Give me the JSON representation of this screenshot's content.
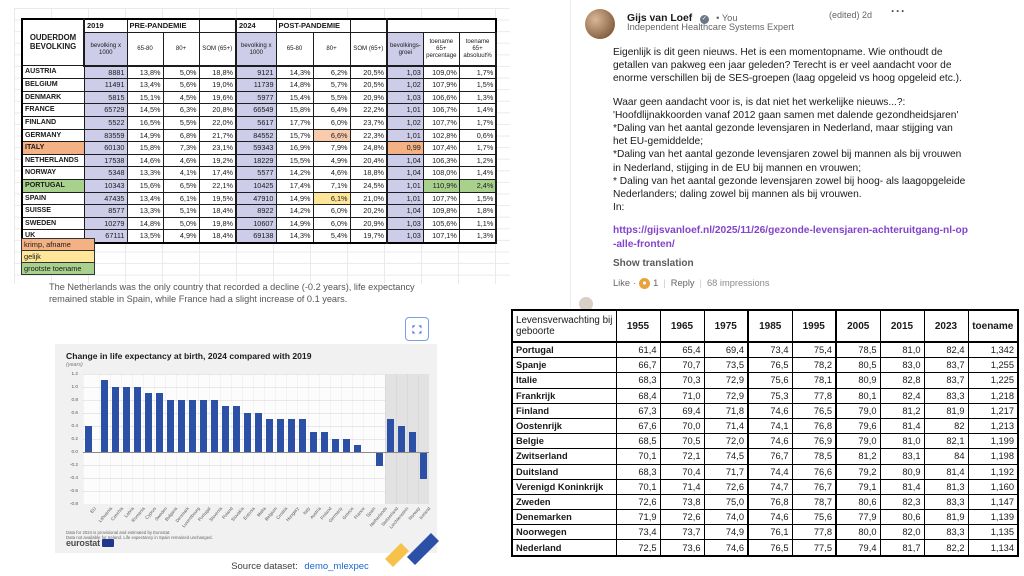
{
  "colors": {
    "lavender": "#cdcde9",
    "highlight_orange": "#f4b183",
    "highlight_salmon": "#f8cbad",
    "highlight_yellow": "#ffe699",
    "highlight_green": "#a9d18e",
    "bar_blue": "#2b50a5",
    "source_link_blue": "#1967d2",
    "post_link_purple": "#8344cc"
  },
  "pop_table": {
    "corner": "OUDERDOM\nBEVOLKING",
    "groups": [
      {
        "year": "2019",
        "label": "PRE-PANDEMIE"
      },
      {
        "year": "2024",
        "label": "POST-PANDEMIE"
      }
    ],
    "sub_headers": [
      "bevolking x 1000",
      "65-80",
      "80+",
      "SOM (65+)"
    ],
    "extra_headers": [
      "bevolkings-groei",
      "toename 65+ percentage",
      "toename 65+ absoluut%"
    ],
    "rows": [
      {
        "c": "AUSTRIA",
        "a": [
          "8881",
          "13,8%",
          "5,0%",
          "18,8%"
        ],
        "b": [
          "9121",
          "14,3%",
          "6,2%",
          "20,5%"
        ],
        "g": "1,03",
        "p": "109,0%",
        "x": "1,7%"
      },
      {
        "c": "BELGIUM",
        "a": [
          "11491",
          "13,4%",
          "5,6%",
          "19,0%"
        ],
        "b": [
          "11739",
          "14,8%",
          "5,7%",
          "20,5%"
        ],
        "g": "1,02",
        "p": "107,9%",
        "x": "1,5%"
      },
      {
        "c": "DENMARK",
        "a": [
          "5815",
          "15,1%",
          "4,5%",
          "19,6%"
        ],
        "b": [
          "5977",
          "15,4%",
          "5,5%",
          "20,9%"
        ],
        "g": "1,03",
        "p": "106,6%",
        "x": "1,3%"
      },
      {
        "c": "FRANCE",
        "a": [
          "65729",
          "14,5%",
          "6,3%",
          "20,8%"
        ],
        "b": [
          "66549",
          "15,8%",
          "6,4%",
          "22,2%"
        ],
        "g": "1,01",
        "p": "106,7%",
        "x": "1,4%"
      },
      {
        "c": "FINLAND",
        "a": [
          "5522",
          "16,5%",
          "5,5%",
          "22,0%"
        ],
        "b": [
          "5617",
          "17,7%",
          "6,0%",
          "23,7%"
        ],
        "g": "1,02",
        "p": "107,7%",
        "x": "1,7%"
      },
      {
        "c": "GERMANY",
        "a": [
          "83559",
          "14,9%",
          "6,8%",
          "21,7%"
        ],
        "b": [
          "84552",
          "15,7%",
          "6,6%",
          "22,3%"
        ],
        "g": "1,01",
        "p": "102,8%",
        "x": "0,6%",
        "hl": {
          "b2": "salmon"
        }
      },
      {
        "c": "ITALY",
        "a": [
          "60130",
          "15,8%",
          "7,3%",
          "23,1%"
        ],
        "b": [
          "59343",
          "16,9%",
          "7,9%",
          "24,8%"
        ],
        "g": "0,99",
        "p": "107,4%",
        "x": "1,7%",
        "hl": {
          "c": "orange",
          "g": "orange"
        }
      },
      {
        "c": "NETHERLANDS",
        "a": [
          "17538",
          "14,6%",
          "4,6%",
          "19,2%"
        ],
        "b": [
          "18229",
          "15,5%",
          "4,9%",
          "20,4%"
        ],
        "g": "1,04",
        "p": "106,3%",
        "x": "1,2%"
      },
      {
        "c": "NORWAY",
        "a": [
          "5348",
          "13,3%",
          "4,1%",
          "17,4%"
        ],
        "b": [
          "5577",
          "14,2%",
          "4,6%",
          "18,8%"
        ],
        "g": "1,04",
        "p": "108,0%",
        "x": "1,4%"
      },
      {
        "c": "PORTUGAL",
        "a": [
          "10343",
          "15,6%",
          "6,5%",
          "22,1%"
        ],
        "b": [
          "10425",
          "17,4%",
          "7,1%",
          "24,5%"
        ],
        "g": "1,01",
        "p": "110,9%",
        "x": "2,4%",
        "hl": {
          "c": "green",
          "p": "green",
          "x": "green"
        }
      },
      {
        "c": "SPAIN",
        "a": [
          "47435",
          "13,4%",
          "6,1%",
          "19,5%"
        ],
        "b": [
          "47910",
          "14,9%",
          "6,1%",
          "21,0%"
        ],
        "g": "1,01",
        "p": "107,7%",
        "x": "1,5%",
        "hl": {
          "b2": "yellow"
        }
      },
      {
        "c": "SUISSE",
        "a": [
          "8577",
          "13,3%",
          "5,1%",
          "18,4%"
        ],
        "b": [
          "8922",
          "14,2%",
          "6,0%",
          "20,2%"
        ],
        "g": "1,04",
        "p": "109,8%",
        "x": "1,8%"
      },
      {
        "c": "SWEDEN",
        "a": [
          "10279",
          "14,8%",
          "5,0%",
          "19,8%"
        ],
        "b": [
          "10607",
          "14,9%",
          "6,0%",
          "20,9%"
        ],
        "g": "1,03",
        "p": "105,6%",
        "x": "1,1%"
      },
      {
        "c": "UK",
        "a": [
          "67111",
          "13,5%",
          "4,9%",
          "18,4%"
        ],
        "b": [
          "69138",
          "14,3%",
          "5,4%",
          "19,7%"
        ],
        "g": "1,03",
        "p": "107,1%",
        "x": "1,3%"
      }
    ],
    "legend": [
      {
        "label": "krimp, afname",
        "color": "#f4b183"
      },
      {
        "label": "gelijk",
        "color": "#ffe699"
      },
      {
        "label": "grootste toename",
        "color": "#a9d18e"
      }
    ]
  },
  "note": "The Netherlands was the only country that recorded a decline (-0.2 years), life expectancy remained stable in Spain, while France had a slight increase of 0.1 years.",
  "chart_data": {
    "type": "bar",
    "title": "Change in life expectancy at birth, 2024 compared with 2019",
    "subtitle": "(years)",
    "ylabel": "years",
    "ylim": [
      -0.8,
      1.2
    ],
    "yticks": [
      1.2,
      1.0,
      0.8,
      0.6,
      0.4,
      0.2,
      0.0,
      -0.2,
      -0.4,
      -0.6,
      -0.8
    ],
    "grid": true,
    "categories": [
      "EU",
      "Lithuania",
      "Czechia",
      "Latvia",
      "Romania",
      "Cyprus",
      "Sweden",
      "Bulgaria",
      "Denmark",
      "Luxembourg",
      "Portugal",
      "Slovenia",
      "Poland",
      "Slovakia",
      "Estonia",
      "Malta",
      "Belgium",
      "Croatia",
      "Hungary",
      "Italy",
      "Austria",
      "Finland",
      "Germany",
      "Greece",
      "France",
      "Spain",
      "Netherlands",
      "Switzerland",
      "Liechtenstein",
      "Norway",
      "Iceland"
    ],
    "values": [
      0.4,
      1.1,
      1.0,
      1.0,
      1.0,
      0.9,
      0.9,
      0.8,
      0.8,
      0.8,
      0.8,
      0.8,
      0.7,
      0.7,
      0.6,
      0.6,
      0.5,
      0.5,
      0.5,
      0.5,
      0.3,
      0.3,
      0.2,
      0.2,
      0.1,
      0.0,
      -0.2,
      0.5,
      0.4,
      0.3,
      -0.4
    ],
    "efta_start_index": 27,
    "bar_color": "#2b50a5",
    "footnotes": [
      "Data for 2024 is provisional and estimated by Eurostat.",
      "Data not available for Ireland. Life expectancy in Spain remained unchanged."
    ],
    "logo": "eurostat"
  },
  "source_line": {
    "label": "Source dataset:",
    "link": "demo_mlexpec"
  },
  "post": {
    "author": "Gijs van Loef",
    "badge": "✓",
    "you": "• You",
    "meta": "(edited) 2d",
    "menu": "···",
    "headline": "Independent Healthcare Systems Expert",
    "paragraphs": [
      "Eigenlijk is dit geen nieuws. Het is een momentopname. Wie onthoudt de getallen van pakweg een jaar geleden? Terecht is er veel aandacht voor de enorme verschillen bij de SES-groepen (laag opgeleid vs hoog opgeleid etc.).",
      "Waar geen aandacht voor is, is dat niet het werkelijke nieuws...?:\n'Hoofdlijnakkoorden vanaf 2012 gaan samen met dalende gezondheidsjaren'\n*Daling van het aantal gezonde levensjaren in Nederland, maar stijging van het EU-gemiddelde;\n*Daling van het aantal gezonde levensjaren zowel bij mannen als bij vrouwen in Nederland, stijging in de EU bij mannen en vrouwen;\n* Daling van het aantal gezonde levensjaren zowel bij hoog- als laagopgeleide Nederlanders; daling zowel bij mannen als bij vrouwen.\nIn:"
    ],
    "link": "https://gijsvanloef.nl/2025/11/26/gezonde-levensjaren-achteruitgang-nl-op-alle-fronten/",
    "show_translation": "Show translation",
    "footer": {
      "like": "Like",
      "dot": "·",
      "count": "1",
      "reply": "Reply",
      "impressions": "68 impressions"
    }
  },
  "life_table": {
    "corner": "Levensverwachting bij geboorte",
    "years": [
      "1955",
      "1965",
      "1975",
      "1985",
      "1995",
      "2005",
      "2015",
      "2023"
    ],
    "last": "toename",
    "rows": [
      {
        "land": "Portugal",
        "v": [
          "61,4",
          "65,4",
          "69,4",
          "73,4",
          "75,4",
          "78,5",
          "81,0",
          "82,4"
        ],
        "t": "1,342"
      },
      {
        "land": "Spanje",
        "v": [
          "66,7",
          "70,7",
          "73,5",
          "76,5",
          "78,2",
          "80,5",
          "83,0",
          "83,7"
        ],
        "t": "1,255"
      },
      {
        "land": "Italie",
        "v": [
          "68,3",
          "70,3",
          "72,9",
          "75,6",
          "78,1",
          "80,9",
          "82,8",
          "83,7"
        ],
        "t": "1,225"
      },
      {
        "land": "Frankrijk",
        "v": [
          "68,4",
          "71,0",
          "72,9",
          "75,3",
          "77,8",
          "80,1",
          "82,4",
          "83,3"
        ],
        "t": "1,218"
      },
      {
        "land": "Finland",
        "v": [
          "67,3",
          "69,4",
          "71,8",
          "74,6",
          "76,5",
          "79,0",
          "81,2",
          "81,9"
        ],
        "t": "1,217"
      },
      {
        "land": "Oostenrijk",
        "v": [
          "67,6",
          "70,0",
          "71,4",
          "74,1",
          "76,8",
          "79,6",
          "81,4",
          "82"
        ],
        "t": "1,213"
      },
      {
        "land": "Belgie",
        "v": [
          "68,5",
          "70,5",
          "72,0",
          "74,6",
          "76,9",
          "79,0",
          "81,0",
          "82,1"
        ],
        "t": "1,199"
      },
      {
        "land": "Zwitserland",
        "v": [
          "70,1",
          "72,1",
          "74,5",
          "76,7",
          "78,5",
          "81,2",
          "83,1",
          "84"
        ],
        "t": "1,198"
      },
      {
        "land": "Duitsland",
        "v": [
          "68,3",
          "70,4",
          "71,7",
          "74,4",
          "76,6",
          "79,2",
          "80,9",
          "81,4"
        ],
        "t": "1,192"
      },
      {
        "land": "Verenigd Koninkrijk",
        "v": [
          "70,1",
          "71,4",
          "72,6",
          "74,7",
          "76,7",
          "79,1",
          "81,4",
          "81,3"
        ],
        "t": "1,160"
      },
      {
        "land": "Zweden",
        "v": [
          "72,6",
          "73,8",
          "75,0",
          "76,8",
          "78,7",
          "80,6",
          "82,3",
          "83,3"
        ],
        "t": "1,147"
      },
      {
        "land": "Denemarken",
        "v": [
          "71,9",
          "72,6",
          "74,0",
          "74,6",
          "75,6",
          "77,9",
          "80,6",
          "81,9"
        ],
        "t": "1,139"
      },
      {
        "land": "Noorwegen",
        "v": [
          "73,4",
          "73,7",
          "74,9",
          "76,1",
          "77,8",
          "80,0",
          "82,0",
          "83,3"
        ],
        "t": "1,135"
      },
      {
        "land": "Nederland",
        "v": [
          "72,5",
          "73,6",
          "74,6",
          "76,5",
          "77,5",
          "79,4",
          "81,7",
          "82,2"
        ],
        "t": "1,134"
      }
    ]
  }
}
